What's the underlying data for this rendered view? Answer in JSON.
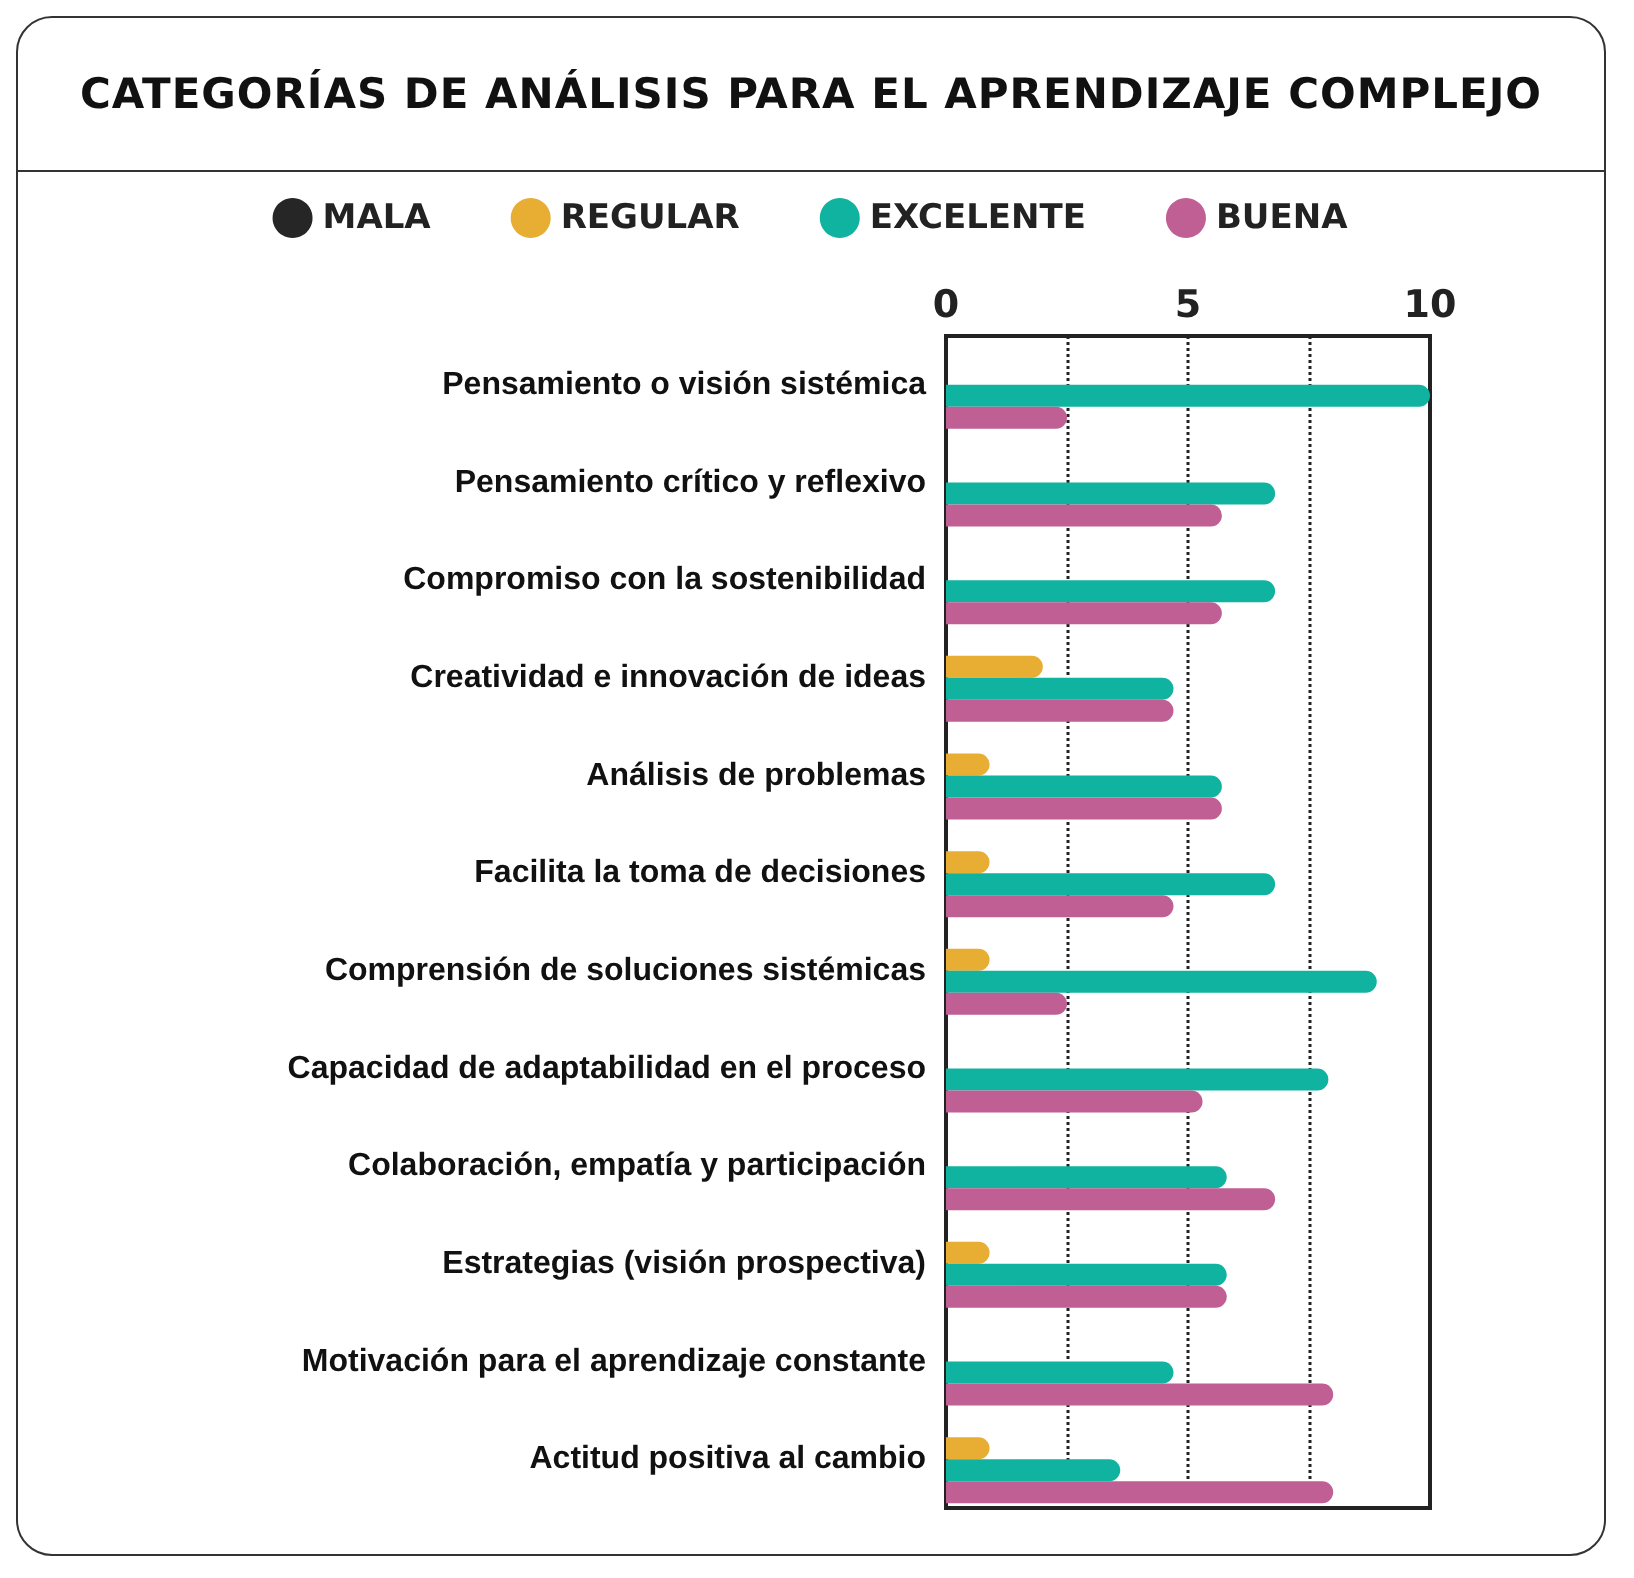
{
  "chart_data": {
    "type": "bar",
    "orientation": "horizontal",
    "title": "CATEGORÍAS DE ANÁLISIS PARA EL APRENDIZAJE COMPLEJO",
    "categories": [
      "Pensamiento o visión sistémica",
      "Pensamiento crítico y reflexivo",
      "Compromiso con la sostenibilidad",
      "Creatividad e innovación de ideas",
      "Análisis de problemas",
      "Facilita la toma de decisiones",
      "Comprensión de soluciones sistémicas",
      "Capacidad de adaptabilidad en el proceso",
      "Colaboración, empatía y participación",
      "Estrategias (visión prospectiva)",
      "Motivación para el aprendizaje constante",
      "Actitud positiva al cambio"
    ],
    "series": [
      {
        "name": "MALA",
        "color": "#262626",
        "values": [
          null,
          null,
          null,
          null,
          null,
          null,
          null,
          null,
          null,
          null,
          null,
          null
        ]
      },
      {
        "name": "REGULAR",
        "color": "#e8ad33",
        "values": [
          null,
          null,
          null,
          2,
          0.9,
          0.9,
          0.9,
          null,
          null,
          0.9,
          null,
          0.9
        ]
      },
      {
        "name": "EXCELENTE",
        "color": "#10b3a0",
        "values": [
          10,
          6.8,
          6.8,
          4.7,
          5.7,
          6.8,
          8.9,
          7.9,
          5.8,
          5.8,
          4.7,
          3.6
        ]
      },
      {
        "name": "BUENA",
        "color": "#c05f94",
        "values": [
          2.5,
          5.7,
          5.7,
          4.7,
          5.7,
          4.7,
          2.5,
          5.3,
          6.8,
          5.8,
          8,
          8
        ]
      }
    ],
    "xlim": [
      0,
      10
    ],
    "xticks": [
      0,
      {
        "value": 2.5,
        "label": null
      },
      5,
      {
        "value": 7.5,
        "label": null
      },
      10
    ],
    "grid": "x",
    "legend": "top"
  }
}
